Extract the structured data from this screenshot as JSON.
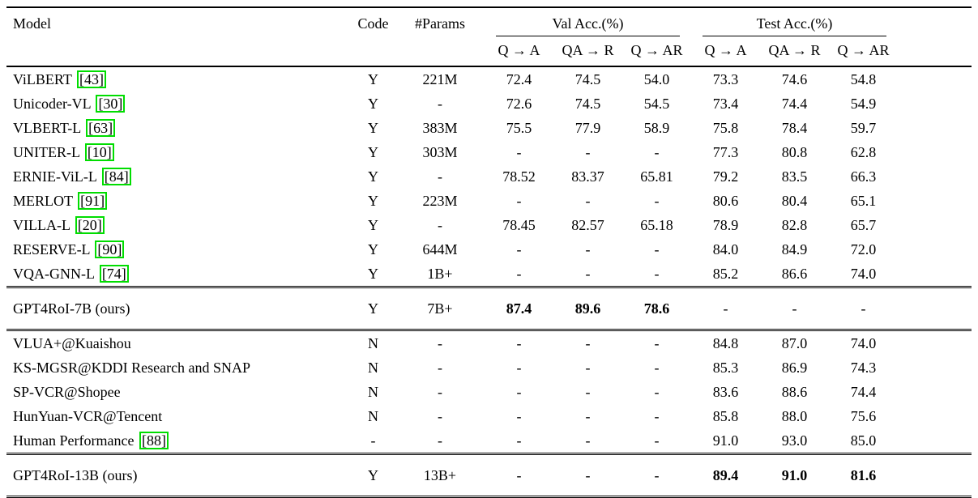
{
  "colors": {
    "citation_box": "#00dd00"
  },
  "table": {
    "headers": {
      "model": "Model",
      "code": "Code",
      "params": "#Params",
      "val_group": "Val Acc.(%)",
      "test_group": "Test Acc.(%)",
      "sub": [
        "Q → A",
        "QA → R",
        "Q → AR",
        "Q → A",
        "QA → R",
        "Q → AR"
      ]
    },
    "sections": [
      {
        "rows": [
          {
            "model": "ViLBERT",
            "cite": "43",
            "code": "Y",
            "params": "221M",
            "vals": [
              "72.4",
              "74.5",
              "54.0",
              "73.3",
              "74.6",
              "54.8"
            ]
          },
          {
            "model": "Unicoder-VL",
            "cite": "30",
            "code": "Y",
            "params": "-",
            "vals": [
              "72.6",
              "74.5",
              "54.5",
              "73.4",
              "74.4",
              "54.9"
            ]
          },
          {
            "model": "VLBERT-L",
            "cite": "63",
            "code": "Y",
            "params": "383M",
            "vals": [
              "75.5",
              "77.9",
              "58.9",
              "75.8",
              "78.4",
              "59.7"
            ]
          },
          {
            "model": "UNITER-L",
            "cite": "10",
            "code": "Y",
            "params": "303M",
            "vals": [
              "-",
              "-",
              "-",
              "77.3",
              "80.8",
              "62.8"
            ]
          },
          {
            "model": "ERNIE-ViL-L",
            "cite": "84",
            "code": "Y",
            "params": "-",
            "vals": [
              "78.52",
              "83.37",
              "65.81",
              "79.2",
              "83.5",
              "66.3"
            ]
          },
          {
            "model": "MERLOT",
            "cite": "91",
            "code": "Y",
            "params": "223M",
            "vals": [
              "-",
              "-",
              "-",
              "80.6",
              "80.4",
              "65.1"
            ]
          },
          {
            "model": "VILLA-L",
            "cite": "20",
            "code": "Y",
            "params": "-",
            "vals": [
              "78.45",
              "82.57",
              "65.18",
              "78.9",
              "82.8",
              "65.7"
            ]
          },
          {
            "model": "RESERVE-L",
            "cite": "90",
            "code": "Y",
            "params": "644M",
            "vals": [
              "-",
              "-",
              "-",
              "84.0",
              "84.9",
              "72.0"
            ]
          },
          {
            "model": "VQA-GNN-L",
            "cite": "74",
            "code": "Y",
            "params": "1B+",
            "vals": [
              "-",
              "-",
              "-",
              "85.2",
              "86.6",
              "74.0"
            ]
          }
        ]
      },
      {
        "rows": [
          {
            "model": "GPT4RoI-7B (ours)",
            "code": "Y",
            "params": "7B+",
            "vals": [
              "87.4",
              "89.6",
              "78.6",
              "-",
              "-",
              "-"
            ],
            "bold": [
              0,
              1,
              2
            ]
          }
        ]
      },
      {
        "rows": [
          {
            "model": "VLUA+@Kuaishou",
            "code": "N",
            "params": "-",
            "vals": [
              "-",
              "-",
              "-",
              "84.8",
              "87.0",
              "74.0"
            ]
          },
          {
            "model": "KS-MGSR@KDDI Research and SNAP",
            "code": "N",
            "params": "-",
            "vals": [
              "-",
              "-",
              "-",
              "85.3",
              "86.9",
              "74.3"
            ]
          },
          {
            "model": "SP-VCR@Shopee",
            "code": "N",
            "params": "-",
            "vals": [
              "-",
              "-",
              "-",
              "83.6",
              "88.6",
              "74.4"
            ]
          },
          {
            "model": "HunYuan-VCR@Tencent",
            "code": "N",
            "params": "-",
            "vals": [
              "-",
              "-",
              "-",
              "85.8",
              "88.0",
              "75.6"
            ]
          },
          {
            "model": "Human Performance",
            "cite": "88",
            "code": "-",
            "params": "-",
            "vals": [
              "-",
              "-",
              "-",
              "91.0",
              "93.0",
              "85.0"
            ]
          }
        ]
      },
      {
        "rows": [
          {
            "model": "GPT4RoI-13B (ours)",
            "code": "Y",
            "params": "13B+",
            "vals": [
              "-",
              "-",
              "-",
              "89.4",
              "91.0",
              "81.6"
            ],
            "bold": [
              3,
              4,
              5
            ]
          }
        ]
      }
    ]
  }
}
